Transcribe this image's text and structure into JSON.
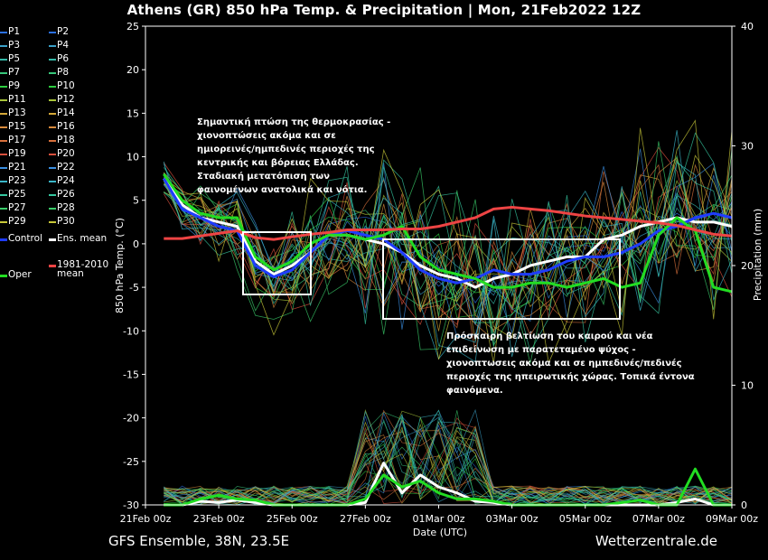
{
  "title": "Athens  (GR)  850 hPa Temp. & Precipitation | Mon, 21Feb2022 12Z",
  "footer_left": "GFS Ensemble, 38N, 23.5E",
  "footer_right": "Wetterzentrale.de",
  "annotations": {
    "top": [
      "Σημαντική πτώση της θερμοκρασίας -",
      "χιονοπτώσεις ακόμα και σε",
      "ημιορεινές/ημπεδινές περιοχές της",
      "κεντρικής και βόρειας Ελλάδας.",
      "Σταδιακή μετατόπιση των",
      "φαινομένων ανατολικά και νότια."
    ],
    "bottom": [
      "Πρόσκαιρη βελτίωση του καιρού και νέα",
      "επιδείνωση με παρατεταμένο ψύχος -",
      "χιονοπτωσεις ακόμα και σε ημπεδινές/πεδινές",
      "περιοχές της ηπειρωτικής χώρας. Τοπικά έντονα",
      "φαινόμενα."
    ]
  },
  "legend": [
    {
      "label": "P1",
      "color": "#2a6fe0"
    },
    {
      "label": "P2",
      "color": "#2a6fe0"
    },
    {
      "label": "P3",
      "color": "#3aa0c8"
    },
    {
      "label": "P4",
      "color": "#3aa0c8"
    },
    {
      "label": "P5",
      "color": "#35b9a8"
    },
    {
      "label": "P6",
      "color": "#35b9a8"
    },
    {
      "label": "P7",
      "color": "#38c77a"
    },
    {
      "label": "P8",
      "color": "#38c77a"
    },
    {
      "label": "P9",
      "color": "#2ecc40"
    },
    {
      "label": "P10",
      "color": "#2ecc40"
    },
    {
      "label": "P11",
      "color": "#a8c43a"
    },
    {
      "label": "P12",
      "color": "#a8c43a"
    },
    {
      "label": "P13",
      "color": "#d4a838"
    },
    {
      "label": "P14",
      "color": "#d4a838"
    },
    {
      "label": "P15",
      "color": "#d88a3c"
    },
    {
      "label": "P16",
      "color": "#d88a3c"
    },
    {
      "label": "P17",
      "color": "#d8703c"
    },
    {
      "label": "P18",
      "color": "#d8703c"
    },
    {
      "label": "P19",
      "color": "#d8503c"
    },
    {
      "label": "P20",
      "color": "#d8503c"
    },
    {
      "label": "P21",
      "color": "#3a8ee0"
    },
    {
      "label": "P22",
      "color": "#3a8ee0"
    },
    {
      "label": "P23",
      "color": "#3ab6c8"
    },
    {
      "label": "P24",
      "color": "#3ab6c8"
    },
    {
      "label": "P25",
      "color": "#35c7a0"
    },
    {
      "label": "P26",
      "color": "#35c7a0"
    },
    {
      "label": "P27",
      "color": "#3acc6a"
    },
    {
      "label": "P28",
      "color": "#3acc6a"
    },
    {
      "label": "P29",
      "color": "#c8c838"
    },
    {
      "label": "P30",
      "color": "#c8c838"
    },
    {
      "label": "Control",
      "color": "#1f3cff"
    },
    {
      "label": "Ens. mean",
      "color": "#ffffff"
    },
    {
      "label": "Oper",
      "color": "#22dd22"
    },
    {
      "label": "1981-2010\nmean",
      "color": "#ee4444"
    }
  ],
  "chart_data": {
    "type": "line",
    "title": "Athens  (GR)  850 hPa Temp. & Precipitation | Mon, 21Feb2022 12Z",
    "xlabel": "Date (UTC)",
    "ylabel": "850 hPa Temp. (°C)",
    "y2label": "Precipitation (mm)",
    "ylim": [
      -30,
      25
    ],
    "y2lim": [
      0,
      40
    ],
    "xlim": [
      0,
      16
    ],
    "x_tick_labels": [
      "21Feb 00z",
      "23Feb 00z",
      "25Feb 00z",
      "27Feb 00z",
      "01Mar 00z",
      "03Mar 00z",
      "05Mar 00z",
      "07Mar 00z",
      "09Mar 00z"
    ],
    "y_ticks": [
      25,
      20,
      15,
      10,
      5,
      0,
      -5,
      -10,
      -15,
      -20,
      -25,
      -30
    ],
    "y2_ticks": [
      40,
      30,
      20,
      10,
      0
    ],
    "grid": false,
    "x_days": [
      0.5,
      1,
      1.5,
      2,
      2.5,
      3,
      3.5,
      4,
      4.5,
      5,
      5.5,
      6,
      6.5,
      7,
      7.5,
      8,
      8.5,
      9,
      9.5,
      10,
      10.5,
      11,
      11.5,
      12,
      12.5,
      13,
      13.5,
      14,
      14.5,
      15,
      15.5,
      16
    ],
    "series": [
      {
        "name": "Ens. mean",
        "color": "#ffffff",
        "values": [
          7.5,
          4.5,
          3,
          2.5,
          2,
          -2,
          -3.5,
          -2.5,
          -1,
          1,
          1,
          0.5,
          0,
          -1,
          -2.5,
          -3.5,
          -4,
          -5,
          -4,
          -3.5,
          -2.5,
          -2,
          -1.5,
          -1.5,
          0.5,
          1,
          2,
          2.5,
          3,
          2.5,
          2.5,
          2
        ]
      },
      {
        "name": "Control",
        "color": "#1f3cff",
        "values": [
          7.5,
          4,
          3,
          2,
          1.5,
          -2.5,
          -3.8,
          -3,
          -1,
          1,
          1.5,
          1,
          0.5,
          -1,
          -3,
          -4,
          -4.5,
          -4,
          -3,
          -3.5,
          -3.5,
          -3,
          -2,
          -1.5,
          -1.5,
          -1,
          0,
          1.5,
          2,
          3,
          3.5,
          3
        ]
      },
      {
        "name": "Oper",
        "color": "#22dd22",
        "values": [
          8,
          5,
          3.5,
          3,
          3,
          -1.5,
          -3,
          -2,
          0,
          1,
          1,
          0.5,
          1,
          2,
          -1.5,
          -3,
          -3.5,
          -4,
          -5,
          -5,
          -4.5,
          -4.5,
          -5,
          -4.5,
          -4,
          -5,
          -4.5,
          1,
          3,
          1.5,
          -5,
          -5.5
        ]
      },
      {
        "name": "1981-2010 mean",
        "color": "#ee4444",
        "values": [
          0.6,
          0.6,
          0.9,
          1.2,
          1.5,
          0.7,
          0.5,
          0.8,
          1.1,
          1.3,
          1.6,
          1.6,
          1.6,
          1.7,
          1.7,
          2,
          2.5,
          3,
          4,
          4.2,
          4,
          3.8,
          3.5,
          3.2,
          3,
          2.8,
          2.6,
          2.4,
          2.1,
          1.6,
          1.1,
          0.9
        ]
      },
      {
        "name": "Precip (Ens. mean, mm)",
        "color": "#ffffff",
        "axis": "y2",
        "values": [
          0,
          0,
          0.3,
          0.2,
          0.4,
          0.2,
          0,
          0,
          0,
          0,
          0,
          0.2,
          3.5,
          1,
          2.5,
          1.5,
          1,
          0.3,
          0.2,
          0,
          0,
          0,
          0,
          0,
          0,
          0,
          0,
          0,
          0.2,
          0.5,
          0,
          0
        ]
      },
      {
        "name": "Precip (Oper, mm)",
        "color": "#22dd22",
        "axis": "y2",
        "values": [
          0,
          0,
          0.5,
          0.8,
          0.5,
          0.4,
          0,
          0,
          0,
          0,
          0,
          0.5,
          2.5,
          1.5,
          2,
          1,
          0.5,
          0.5,
          0.3,
          0,
          0,
          0,
          0,
          0,
          0,
          0.2,
          0.4,
          0,
          0,
          3,
          0,
          0
        ]
      }
    ]
  }
}
